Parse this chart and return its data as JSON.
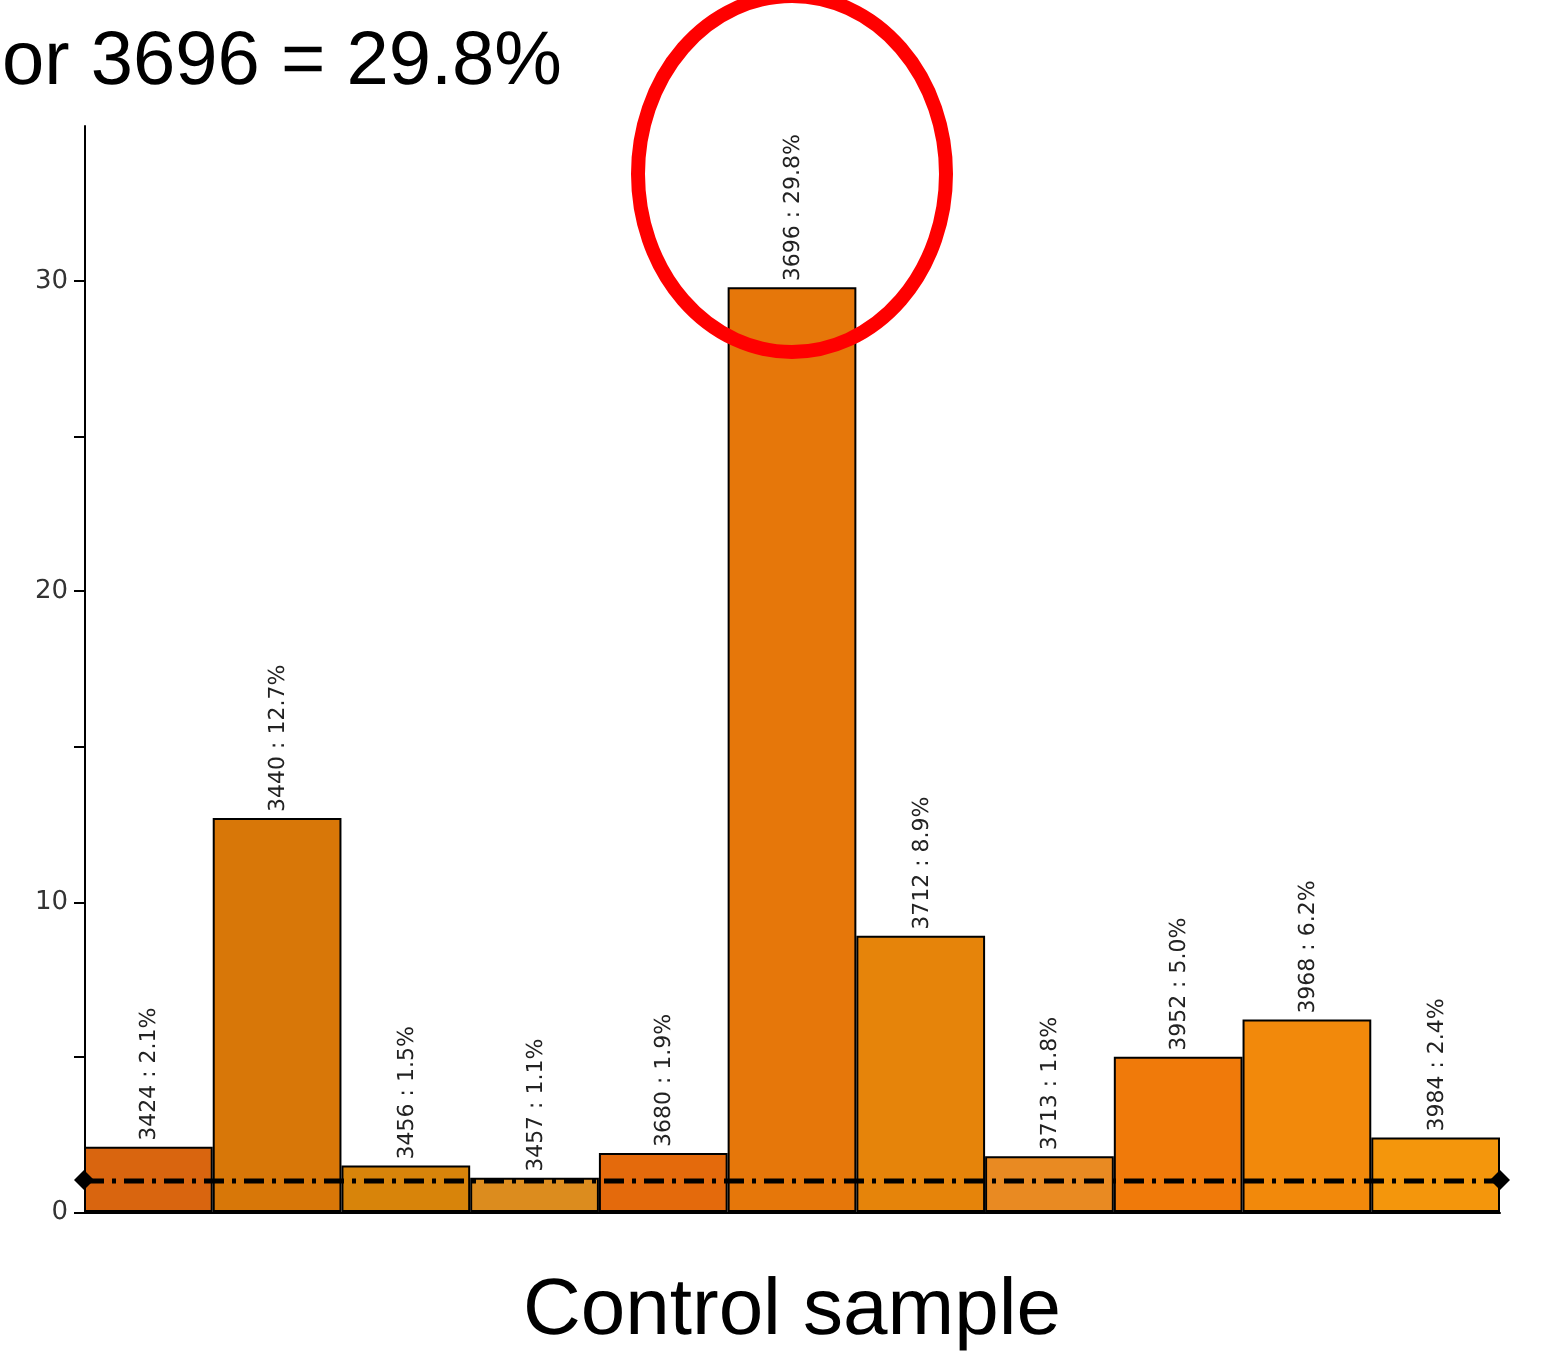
{
  "chart_data": {
    "type": "bar",
    "title": "or 3696 = 29.8%",
    "xlabel": "Control sample",
    "categories": [
      null,
      null,
      null,
      null,
      null,
      null,
      null,
      null,
      null,
      null,
      null
    ],
    "values": [
      2.1,
      12.7,
      1.5,
      1.1,
      1.9,
      29.8,
      8.9,
      1.8,
      5.0,
      6.2,
      2.4
    ],
    "value_labels": [
      "3424 : 2.1%",
      "3440 : 12.7%",
      "3456 : 1.5%",
      "3457 : 1.1%",
      "3680 : 1.9%",
      "3696 : 29.8%",
      "3712 : 8.9%",
      "3713 : 1.8%",
      "3952 : 5.0%",
      "3968 : 6.2%",
      "3984 : 2.4%"
    ],
    "colors": [
      "#d9650f",
      "#d87708",
      "#d8840a",
      "#dc8c1e",
      "#e46a0c",
      "#e6770a",
      "#e6840a",
      "#e98a22",
      "#f07a0a",
      "#f2890b",
      "#f4960c"
    ],
    "ylim": [
      0,
      35
    ],
    "yticks": [
      0,
      {
        "value": 5,
        "label": null
      },
      10,
      {
        "value": 15,
        "label": null
      },
      20,
      {
        "value": 25,
        "label": null
      },
      30
    ],
    "tick_labels": "y",
    "ref_lines": [
      {
        "axis": "y",
        "value": 1,
        "label": null,
        "color": "#000000",
        "line_style": "dashed"
      }
    ]
  }
}
